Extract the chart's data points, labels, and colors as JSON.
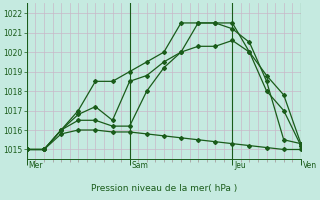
{
  "xlabel": "Pression niveau de la mer( hPa )",
  "background_color": "#c5eae0",
  "grid_color_v": "#c8b8c8",
  "grid_color_h": "#c8b8c8",
  "line_color": "#1a5c1a",
  "ylim": [
    1014.5,
    1022.5
  ],
  "day_labels": [
    "Mer",
    "Sam",
    "Jeu",
    "Ven"
  ],
  "day_positions": [
    0,
    3,
    6,
    8
  ],
  "lines": [
    {
      "x": [
        0,
        0.5,
        1,
        1.5,
        2,
        2.5,
        3,
        3.5,
        4,
        4.5,
        5,
        5.5,
        6,
        6.5,
        7,
        7.5,
        8
      ],
      "y": [
        1015.0,
        1015.0,
        1016.0,
        1017.0,
        1018.5,
        1018.5,
        1019.0,
        1019.5,
        1020.0,
        1021.5,
        1021.5,
        1021.5,
        1021.5,
        1020.0,
        1018.0,
        1017.0,
        1015.2
      ]
    },
    {
      "x": [
        0,
        0.5,
        1,
        1.5,
        2,
        2.5,
        3,
        3.5,
        4,
        4.5,
        5,
        5.5,
        6,
        6.5,
        7,
        7.5,
        8
      ],
      "y": [
        1015.0,
        1015.0,
        1016.0,
        1016.8,
        1017.2,
        1016.5,
        1018.5,
        1018.8,
        1019.5,
        1020.0,
        1021.5,
        1021.5,
        1021.2,
        1020.5,
        1018.5,
        1015.5,
        1015.3
      ]
    },
    {
      "x": [
        0,
        0.5,
        1,
        1.5,
        2,
        2.5,
        3,
        3.5,
        4,
        4.5,
        5,
        5.5,
        6,
        6.5,
        7,
        7.5,
        8
      ],
      "y": [
        1015.0,
        1015.0,
        1016.0,
        1016.5,
        1016.5,
        1016.2,
        1016.2,
        1018.0,
        1019.2,
        1020.0,
        1020.3,
        1020.3,
        1020.6,
        1020.0,
        1018.8,
        1017.8,
        1015.3
      ]
    },
    {
      "x": [
        0,
        0.5,
        1,
        1.5,
        2,
        2.5,
        3,
        3.5,
        4,
        4.5,
        5,
        5.5,
        6,
        6.5,
        7,
        7.5,
        8
      ],
      "y": [
        1015.0,
        1015.0,
        1015.8,
        1016.0,
        1016.0,
        1015.9,
        1015.9,
        1015.8,
        1015.7,
        1015.6,
        1015.5,
        1015.4,
        1015.3,
        1015.2,
        1015.1,
        1015.0,
        1015.0
      ]
    }
  ],
  "yticks": [
    1015,
    1016,
    1017,
    1018,
    1019,
    1020,
    1021,
    1022
  ],
  "xlim": [
    0,
    8
  ]
}
